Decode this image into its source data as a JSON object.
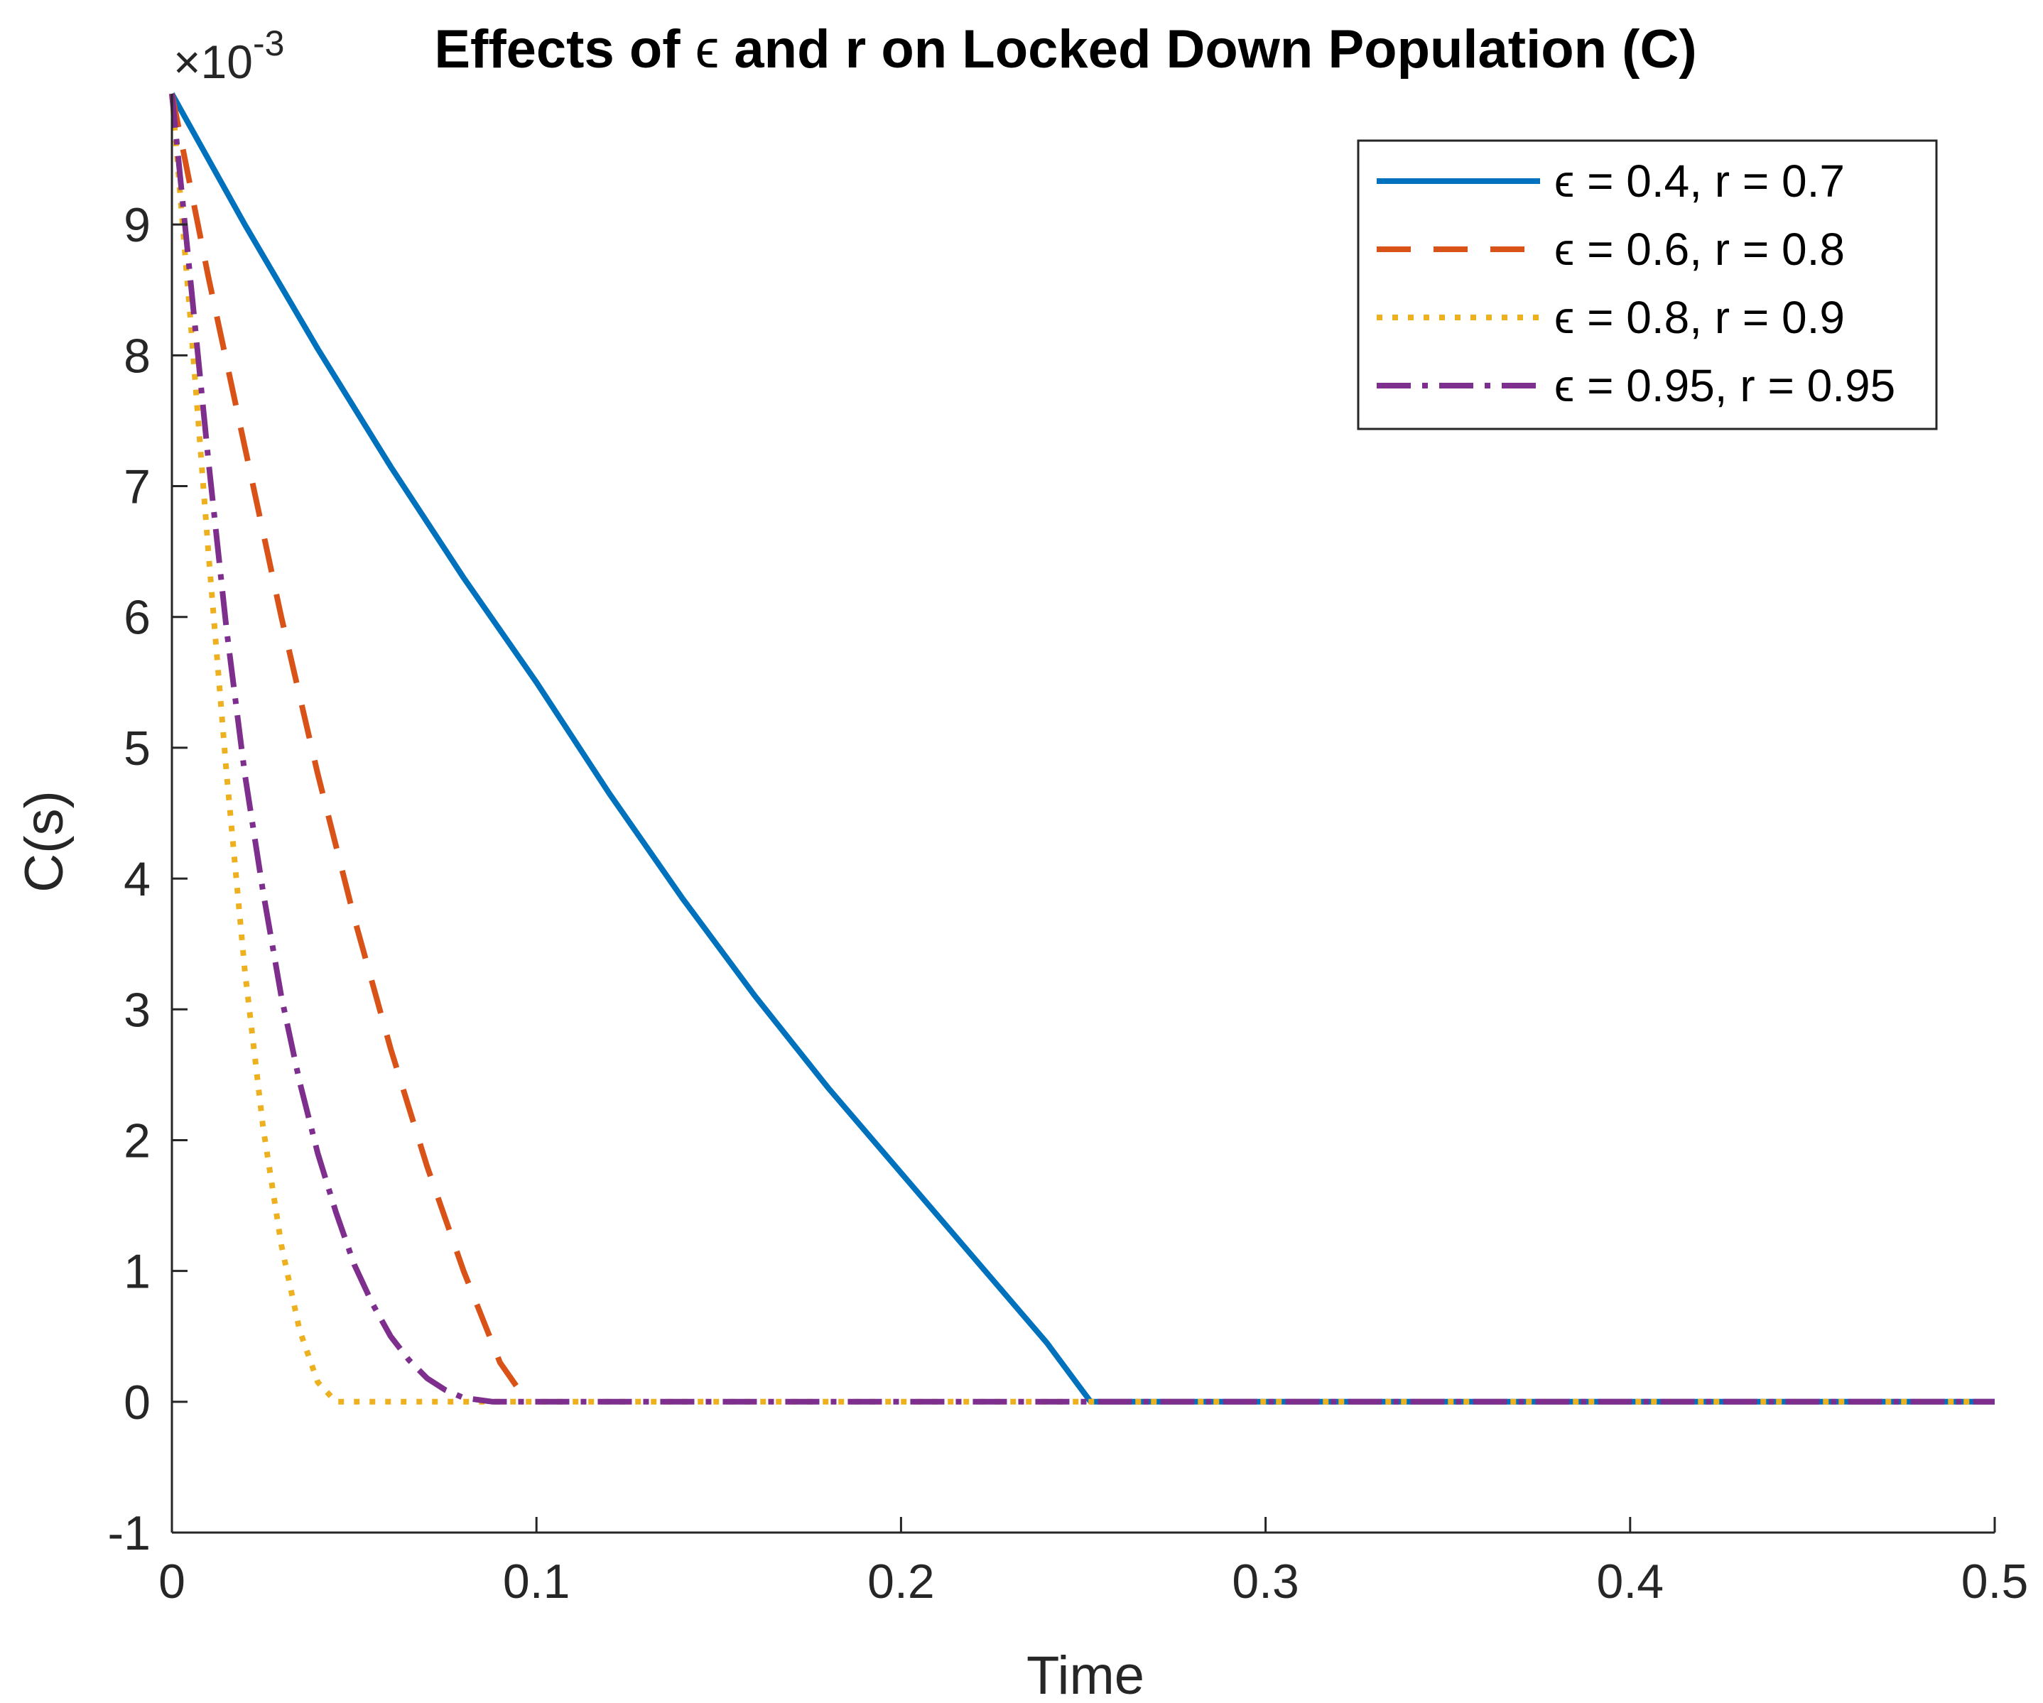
{
  "chart_data": {
    "type": "line",
    "title": "Effects of ϵ and r on Locked Down Population (C)",
    "title_parts": {
      "prefix": "Effects of ",
      "symbol": "ϵ",
      "suffix": " and r on Locked Down Population (C)"
    },
    "xlabel": "Time",
    "ylabel": "C(s)",
    "exponent_label": {
      "base": "×10",
      "power": "-3"
    },
    "xlim": [
      0,
      0.5
    ],
    "ylim": [
      -1,
      10
    ],
    "y_scale": 0.001,
    "xticks": [
      0,
      0.1,
      0.2,
      0.3,
      0.4,
      0.5
    ],
    "xtick_labels": [
      "0",
      "0.1",
      "0.2",
      "0.3",
      "0.4",
      "0.5"
    ],
    "yticks": [
      -1,
      0,
      1,
      2,
      3,
      4,
      5,
      6,
      7,
      8,
      9
    ],
    "ytick_labels": [
      "-1",
      "0",
      "1",
      "2",
      "3",
      "4",
      "5",
      "6",
      "7",
      "8",
      "9"
    ],
    "legend_position": "top-right",
    "series": [
      {
        "name": "ϵ = 0.4, r = 0.7",
        "color": "#0072BD",
        "style": "solid",
        "x": [
          0,
          0.02,
          0.04,
          0.06,
          0.08,
          0.1,
          0.12,
          0.14,
          0.16,
          0.18,
          0.2,
          0.22,
          0.24,
          0.252,
          0.3,
          0.35,
          0.4,
          0.45,
          0.5
        ],
        "y": [
          10,
          9.0,
          8.05,
          7.15,
          6.3,
          5.5,
          4.65,
          3.85,
          3.1,
          2.4,
          1.75,
          1.1,
          0.45,
          0,
          0,
          0,
          0,
          0,
          0
        ]
      },
      {
        "name": "ϵ = 0.6, r = 0.8",
        "color": "#D95319",
        "style": "dash",
        "x": [
          0,
          0.01,
          0.02,
          0.03,
          0.04,
          0.05,
          0.06,
          0.07,
          0.08,
          0.09,
          0.095
        ],
        "y": [
          10,
          8.6,
          7.3,
          6.0,
          4.8,
          3.7,
          2.7,
          1.8,
          1.0,
          0.3,
          0.1
        ]
      },
      {
        "name": "ϵ = 0.8, r = 0.9",
        "color": "#EDB120",
        "style": "dot",
        "x": [
          0,
          0.005,
          0.01,
          0.015,
          0.02,
          0.025,
          0.03,
          0.035,
          0.04,
          0.045,
          0.1,
          0.2,
          0.3,
          0.4,
          0.5
        ],
        "y": [
          10,
          8.3,
          6.5,
          4.8,
          3.3,
          2.1,
          1.2,
          0.55,
          0.15,
          0,
          0,
          0,
          0,
          0,
          0
        ]
      },
      {
        "name": "ϵ = 0.95, r = 0.95",
        "color": "#7E2F8E",
        "style": "dashdot",
        "x": [
          0,
          0.005,
          0.01,
          0.015,
          0.02,
          0.025,
          0.03,
          0.035,
          0.04,
          0.045,
          0.05,
          0.055,
          0.06,
          0.065,
          0.07,
          0.075,
          0.08,
          0.088,
          0.1,
          0.2,
          0.3,
          0.4,
          0.5
        ],
        "y": [
          10,
          8.6,
          7.2,
          5.9,
          4.8,
          3.9,
          3.1,
          2.45,
          1.9,
          1.45,
          1.05,
          0.75,
          0.5,
          0.32,
          0.18,
          0.09,
          0.03,
          0,
          0,
          0,
          0,
          0,
          0
        ]
      }
    ]
  }
}
